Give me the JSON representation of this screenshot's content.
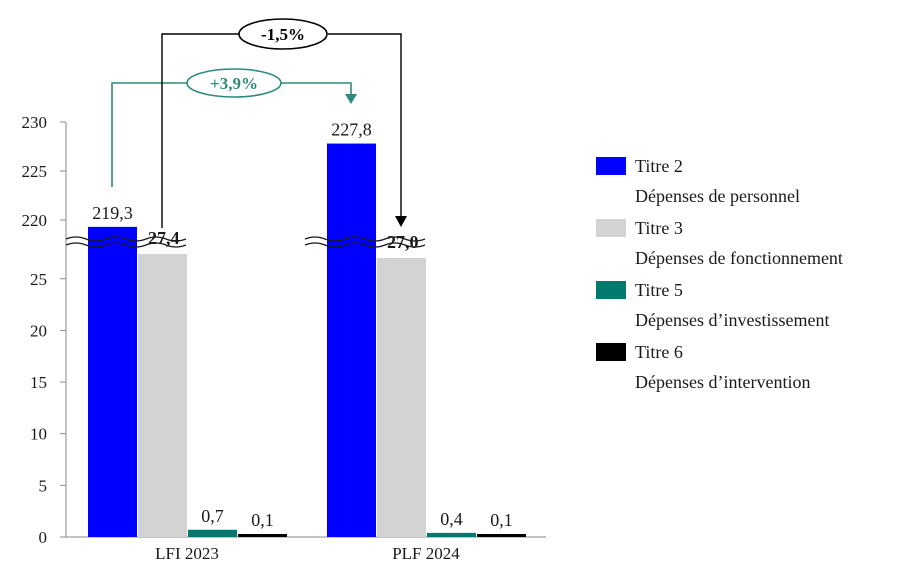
{
  "chart_data": {
    "type": "bar",
    "axis_break": true,
    "ylim_lower": [
      0,
      28
    ],
    "ylim_upper": [
      218,
      230
    ],
    "yticks_lower": [
      0,
      5,
      10,
      15,
      20,
      25
    ],
    "yticks_upper": [
      220,
      225,
      230
    ],
    "categories": [
      "LFI 2023",
      "PLF 2024"
    ],
    "series": [
      {
        "name": "Titre 2",
        "description": "Dépenses de personnel",
        "color": "#0000ff",
        "values": [
          219.3,
          227.8
        ],
        "labels": [
          "219,3",
          "227,8"
        ],
        "bold": false
      },
      {
        "name": "Titre 3",
        "description": "Dépenses de fonctionnement",
        "color": "#d3d3d3",
        "values": [
          27.4,
          27.0
        ],
        "labels": [
          "27,4",
          "27,0"
        ],
        "bold": true
      },
      {
        "name": "Titre 5",
        "description": "Dépenses d’investissement",
        "color": "#007a6e",
        "values": [
          0.7,
          0.4
        ],
        "labels": [
          "0,7",
          "0,4"
        ],
        "bold": false
      },
      {
        "name": "Titre 6",
        "description": "Dépenses d’intervention",
        "color": "#000000",
        "values": [
          0.1,
          0.1
        ],
        "labels": [
          "0,1",
          "0,1"
        ],
        "bold": false
      }
    ],
    "legend_position": "right",
    "annotations": [
      {
        "text": "+3,9%",
        "color": "#2e8b7a",
        "from": "Titre 2 LFI 2023",
        "to": "Titre 2 PLF 2024"
      },
      {
        "text": "-1,5%",
        "color": "#000000",
        "from": "Titre 3 LFI 2023",
        "to": "Titre 3 PLF 2024"
      }
    ]
  }
}
